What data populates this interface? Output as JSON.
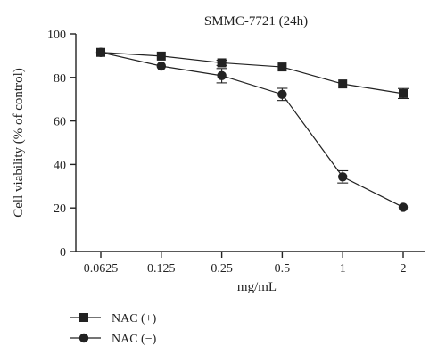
{
  "chart_data": {
    "type": "line",
    "title": "SMMC-7721 (24h)",
    "xlabel": "mg/mL",
    "ylabel": "Cell viability (% of control)",
    "categories": [
      "0.0625",
      "0.125",
      "0.25",
      "0.5",
      "1",
      "2"
    ],
    "ylim": [
      0,
      100
    ],
    "yticks": [
      "0",
      "20",
      "40",
      "60",
      "80",
      "100"
    ],
    "grid": false,
    "legend_position": "bottom-left",
    "series": [
      {
        "name": "NAC (+)",
        "marker": "square",
        "values": [
          91.5,
          89.8,
          86.7,
          84.8,
          77.0,
          72.6
        ],
        "errors": [
          0.8,
          0.8,
          1.2,
          1.0,
          1.0,
          2.3
        ]
      },
      {
        "name": "NAC (−)",
        "marker": "circle",
        "values": [
          91.5,
          85.2,
          80.8,
          72.2,
          34.3,
          20.3
        ],
        "errors": [
          0.8,
          0.8,
          3.3,
          2.8,
          2.8,
          0.8
        ]
      }
    ],
    "colors": {
      "ink": "#222222"
    }
  }
}
